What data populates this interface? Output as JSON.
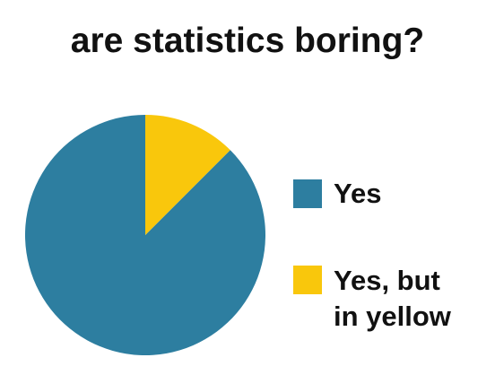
{
  "chart_data": {
    "type": "pie",
    "title": "are statistics boring?",
    "categories": [
      "Yes",
      "Yes, but in yellow"
    ],
    "values": [
      87.5,
      12.5
    ],
    "colors": [
      "#2d7ea0",
      "#f9c70c"
    ],
    "legend_position": "right",
    "legend": [
      {
        "label_lines": [
          "Yes"
        ],
        "color": "#2d7ea0"
      },
      {
        "label_lines": [
          "Yes, but",
          "in yellow"
        ],
        "color": "#f9c70c"
      }
    ]
  }
}
